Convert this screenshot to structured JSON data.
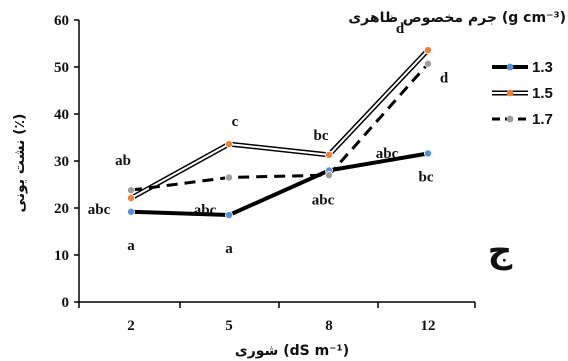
{
  "chart_data": {
    "type": "line",
    "x_categories": [
      "2",
      "5",
      "8",
      "12"
    ],
    "xlabel": "شوری (dS m⁻¹)",
    "ylabel": "نشت یونی (٪)",
    "ylim": [
      0,
      60
    ],
    "yticks": [
      "0",
      "10",
      "20",
      "30",
      "40",
      "50",
      "60"
    ],
    "legend_title": "جرم مخصوص ظاهری (g cm⁻³)",
    "legend_position": "top-right",
    "panel_label": "ج",
    "series": [
      {
        "name": "1.3",
        "values": [
          19.2,
          18.5,
          28.0,
          31.6
        ],
        "color": "#000000",
        "style": "thick-solid",
        "marker_color": "#5b8fd3",
        "letters": [
          "a",
          "a",
          "abc",
          "bc"
        ]
      },
      {
        "name": "1.5",
        "values": [
          22.1,
          33.6,
          31.3,
          53.6
        ],
        "color": "#000000",
        "style": "double-line",
        "marker_color": "#e8833a",
        "letters": [
          "abc",
          "c",
          "bc",
          "d"
        ]
      },
      {
        "name": "1.7",
        "values": [
          23.8,
          26.5,
          27.0,
          50.7
        ],
        "color": "#000000",
        "style": "dashed",
        "marker_color": "#9e9e9e",
        "letters": [
          "ab",
          "abc",
          "abc",
          "d"
        ]
      }
    ]
  }
}
